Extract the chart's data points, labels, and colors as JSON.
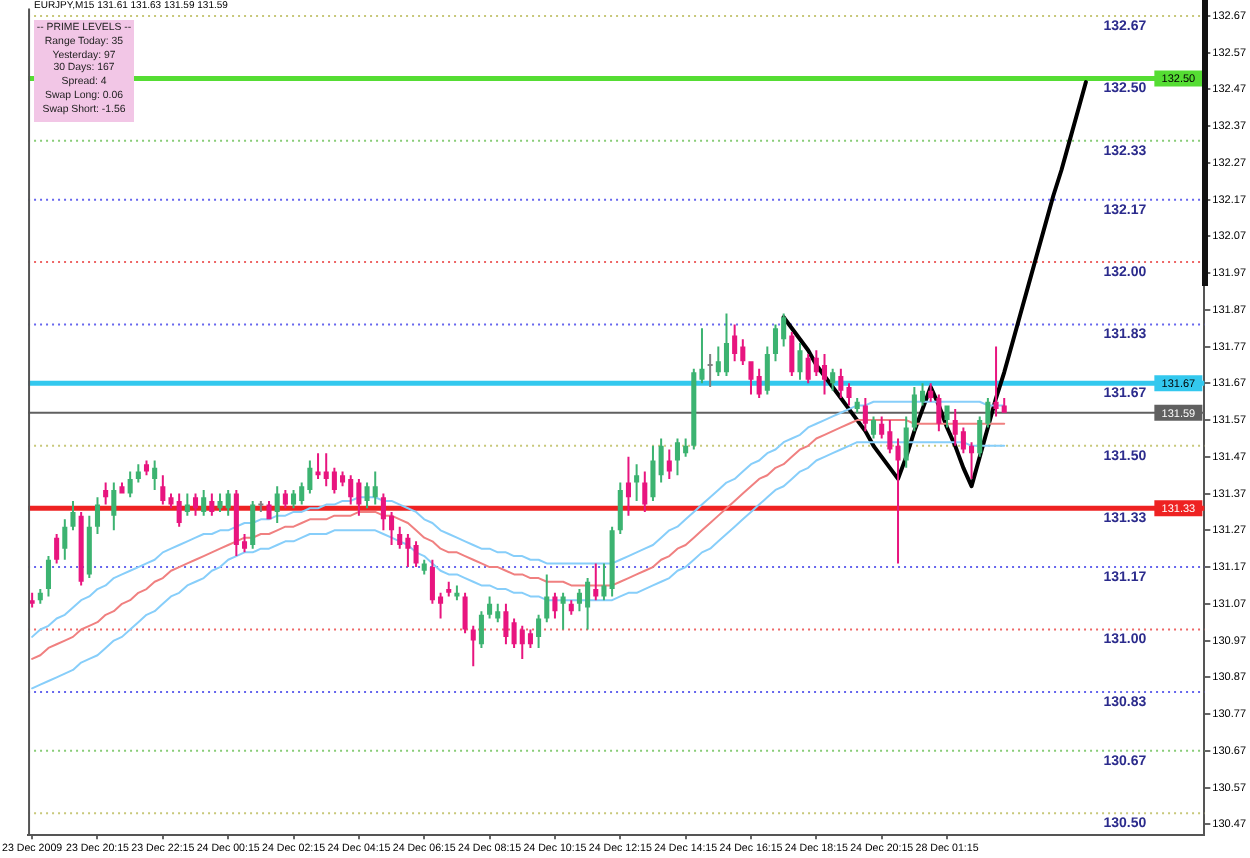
{
  "chart_data": {
    "type": "candlestick",
    "title": "EURJPY,M15 131.61 131.63 131.59 131.59",
    "categories": [
      "23 Dec 2009",
      null,
      null,
      null,
      null,
      null,
      null,
      null,
      "23 Dec 20:15",
      null,
      null,
      null,
      null,
      null,
      null,
      null,
      "23 Dec 22:15",
      null,
      null,
      null,
      null,
      null,
      null,
      null,
      "24 Dec 00:15",
      null,
      null,
      null,
      null,
      null,
      null,
      null,
      "24 Dec 02:15",
      null,
      null,
      null,
      null,
      null,
      null,
      null,
      "24 Dec 04:15",
      null,
      null,
      null,
      null,
      null,
      null,
      null,
      "24 Dec 06:15",
      null,
      null,
      null,
      null,
      null,
      null,
      null,
      "24 Dec 08:15",
      null,
      null,
      null,
      null,
      null,
      null,
      null,
      "24 Dec 10:15",
      null,
      null,
      null,
      null,
      null,
      null,
      null,
      "24 Dec 12:15",
      null,
      null,
      null,
      null,
      null,
      null,
      null,
      "24 Dec 14:15",
      null,
      null,
      null,
      null,
      null,
      null,
      null,
      "24 Dec 16:15",
      null,
      null,
      null,
      null,
      null,
      null,
      null,
      "24 Dec 18:15",
      null,
      null,
      null,
      null,
      null,
      null,
      null,
      "24 Dec 20:15",
      null,
      null,
      null,
      null,
      null,
      null,
      null,
      "28 Dec 01:15",
      null,
      null,
      null,
      null,
      null,
      null,
      null,
      null,
      null,
      null,
      null,
      null,
      null,
      null,
      null,
      null,
      null,
      null,
      null,
      null,
      null,
      null,
      null,
      null,
      null,
      null,
      null,
      null,
      null,
      null,
      null
    ],
    "ylim": [
      130.44,
      132.69
    ],
    "yticks": [
      130.47,
      130.57,
      130.67,
      130.77,
      130.87,
      130.97,
      131.07,
      131.17,
      131.27,
      131.37,
      131.47,
      131.57,
      131.67,
      131.77,
      131.87,
      131.97,
      132.07,
      132.17,
      132.27,
      132.37,
      132.47,
      132.57,
      132.67
    ],
    "ohlc": [
      [
        131.08,
        131.1,
        131.06,
        131.07
      ],
      [
        131.08,
        131.11,
        131.07,
        131.1
      ],
      [
        131.11,
        131.2,
        131.09,
        131.19
      ],
      [
        131.25,
        131.26,
        131.18,
        131.19
      ],
      [
        131.22,
        131.3,
        131.19,
        131.28
      ],
      [
        131.28,
        131.35,
        131.27,
        131.32
      ],
      [
        131.31,
        131.32,
        131.12,
        131.13
      ],
      [
        131.15,
        131.31,
        131.14,
        131.28
      ],
      [
        131.28,
        131.36,
        131.26,
        131.34
      ],
      [
        131.38,
        131.4,
        131.34,
        131.36
      ],
      [
        131.31,
        131.4,
        131.27,
        131.38
      ],
      [
        131.39,
        131.4,
        131.37,
        131.37
      ],
      [
        131.37,
        131.43,
        131.36,
        131.41
      ],
      [
        131.41,
        131.45,
        131.4,
        131.43
      ],
      [
        131.45,
        131.46,
        131.42,
        131.43
      ],
      [
        131.41,
        131.46,
        131.38,
        131.44
      ],
      [
        131.39,
        131.42,
        131.34,
        131.35
      ],
      [
        131.36,
        131.37,
        131.33,
        131.34
      ],
      [
        131.35,
        131.37,
        131.28,
        131.29
      ],
      [
        131.32,
        131.37,
        131.31,
        131.34
      ],
      [
        131.36,
        131.37,
        131.31,
        131.33
      ],
      [
        131.32,
        131.38,
        131.31,
        131.36
      ],
      [
        131.35,
        131.37,
        131.31,
        131.32
      ],
      [
        131.33,
        131.37,
        131.32,
        131.35
      ],
      [
        131.33,
        131.38,
        131.31,
        131.37
      ],
      [
        131.37,
        131.38,
        131.2,
        131.23
      ],
      [
        131.24,
        131.26,
        131.21,
        131.22
      ],
      [
        131.23,
        131.35,
        131.22,
        131.34
      ],
      [
        131.34,
        131.35,
        131.32,
        131.34
      ],
      [
        131.34,
        131.35,
        131.3,
        131.3
      ],
      [
        131.32,
        131.39,
        131.29,
        131.37
      ],
      [
        131.37,
        131.38,
        131.33,
        131.34
      ],
      [
        131.34,
        131.38,
        131.33,
        131.37
      ],
      [
        131.35,
        131.4,
        131.34,
        131.39
      ],
      [
        131.38,
        131.46,
        131.37,
        131.44
      ],
      [
        131.43,
        131.48,
        131.41,
        131.42
      ],
      [
        131.43,
        131.48,
        131.39,
        131.41
      ],
      [
        131.43,
        131.44,
        131.37,
        131.38
      ],
      [
        131.42,
        131.43,
        131.39,
        131.4
      ],
      [
        131.41,
        131.42,
        131.34,
        131.36
      ],
      [
        131.4,
        131.41,
        131.31,
        131.34
      ],
      [
        131.35,
        131.4,
        131.33,
        131.39
      ],
      [
        131.36,
        131.43,
        131.34,
        131.39
      ],
      [
        131.36,
        131.37,
        131.27,
        131.3
      ],
      [
        131.31,
        131.32,
        131.23,
        131.27
      ],
      [
        131.26,
        131.28,
        131.22,
        131.23
      ],
      [
        131.25,
        131.26,
        131.17,
        131.22
      ],
      [
        131.23,
        131.24,
        131.17,
        131.18
      ],
      [
        131.16,
        131.19,
        131.15,
        131.18
      ],
      [
        131.17,
        131.19,
        131.07,
        131.08
      ],
      [
        131.09,
        131.1,
        131.03,
        131.07
      ],
      [
        131.11,
        131.13,
        131.09,
        131.1
      ],
      [
        131.09,
        131.12,
        131.08,
        131.1
      ],
      [
        131.09,
        131.1,
        130.99,
        131.0
      ],
      [
        131.0,
        131.01,
        130.9,
        130.97
      ],
      [
        130.96,
        131.05,
        130.95,
        131.04
      ],
      [
        131.04,
        131.09,
        131.03,
        131.07
      ],
      [
        131.03,
        131.07,
        131.02,
        131.05
      ],
      [
        131.05,
        131.07,
        130.96,
        130.98
      ],
      [
        131.02,
        131.03,
        130.95,
        130.96
      ],
      [
        131.0,
        131.01,
        130.92,
        130.96
      ],
      [
        130.99,
        131.0,
        130.95,
        130.96
      ],
      [
        130.98,
        131.04,
        130.95,
        131.03
      ],
      [
        131.03,
        131.15,
        131.02,
        131.09
      ],
      [
        131.09,
        131.1,
        131.03,
        131.05
      ],
      [
        131.07,
        131.1,
        131.0,
        131.09
      ],
      [
        131.07,
        131.08,
        131.04,
        131.05
      ],
      [
        131.07,
        131.11,
        131.05,
        131.1
      ],
      [
        131.06,
        131.14,
        131.0,
        131.13
      ],
      [
        131.11,
        131.18,
        131.08,
        131.09
      ],
      [
        131.09,
        131.18,
        131.08,
        131.12
      ],
      [
        131.11,
        131.28,
        131.09,
        131.27
      ],
      [
        131.27,
        131.4,
        131.26,
        131.38
      ],
      [
        131.4,
        131.47,
        131.31,
        131.36
      ],
      [
        131.4,
        131.45,
        131.35,
        131.42
      ],
      [
        131.4,
        131.43,
        131.32,
        131.34
      ],
      [
        131.36,
        131.5,
        131.35,
        131.46
      ],
      [
        131.42,
        131.52,
        131.4,
        131.5
      ],
      [
        131.46,
        131.49,
        131.41,
        131.43
      ],
      [
        131.46,
        131.52,
        131.42,
        131.51
      ],
      [
        131.48,
        131.52,
        131.47,
        131.5
      ],
      [
        131.5,
        131.71,
        131.49,
        131.7
      ],
      [
        131.68,
        131.82,
        131.67,
        131.71
      ],
      [
        131.72,
        131.75,
        131.66,
        131.72
      ],
      [
        131.7,
        131.77,
        131.69,
        131.73
      ],
      [
        131.7,
        131.86,
        131.69,
        131.78
      ],
      [
        131.8,
        131.83,
        131.73,
        131.75
      ],
      [
        131.77,
        131.79,
        131.72,
        131.73
      ],
      [
        131.73,
        131.73,
        131.64,
        131.68
      ],
      [
        131.69,
        131.71,
        131.63,
        131.64
      ],
      [
        131.65,
        131.77,
        131.64,
        131.75
      ],
      [
        131.75,
        131.83,
        131.73,
        131.82
      ],
      [
        131.79,
        131.86,
        131.77,
        131.85
      ],
      [
        131.8,
        131.81,
        131.69,
        131.7
      ],
      [
        131.7,
        131.78,
        131.68,
        131.76
      ],
      [
        131.74,
        131.75,
        131.67,
        131.68
      ],
      [
        131.74,
        131.76,
        131.69,
        131.7
      ],
      [
        131.72,
        131.75,
        131.64,
        131.68
      ],
      [
        131.67,
        131.71,
        131.65,
        131.7
      ],
      [
        131.69,
        131.71,
        131.63,
        131.65
      ],
      [
        131.66,
        131.67,
        131.61,
        131.63
      ],
      [
        131.6,
        131.63,
        131.59,
        131.62
      ],
      [
        131.61,
        131.63,
        131.54,
        131.56
      ],
      [
        131.53,
        131.58,
        131.52,
        131.57
      ],
      [
        131.56,
        131.58,
        131.52,
        131.53
      ],
      [
        131.54,
        131.57,
        131.48,
        131.49
      ],
      [
        131.5,
        131.52,
        131.18,
        131.46
      ],
      [
        131.46,
        131.58,
        131.44,
        131.55
      ],
      [
        131.55,
        131.66,
        131.54,
        131.64
      ],
      [
        131.62,
        131.67,
        131.61,
        131.65
      ],
      [
        131.65,
        131.67,
        131.62,
        131.63
      ],
      [
        131.63,
        131.64,
        131.54,
        131.56
      ],
      [
        131.57,
        131.61,
        131.55,
        131.61
      ],
      [
        131.57,
        131.6,
        131.5,
        131.53
      ],
      [
        131.54,
        131.55,
        131.48,
        131.49
      ],
      [
        131.5,
        131.51,
        131.41,
        131.48
      ],
      [
        131.48,
        131.58,
        131.47,
        131.57
      ],
      [
        131.56,
        131.63,
        131.55,
        131.62
      ],
      [
        131.62,
        131.77,
        131.58,
        131.6
      ],
      [
        131.61,
        131.63,
        131.59,
        131.59
      ],
      null,
      null,
      null,
      null,
      null,
      null,
      null,
      null,
      null,
      null,
      null,
      null,
      null,
      null,
      null,
      null,
      null,
      null,
      null,
      null,
      null,
      null,
      null,
      null
    ],
    "colors": [
      "#e8157f",
      "#3cb371",
      "#3cb371",
      "#e8157f",
      "#3cb371",
      "#3cb371",
      "#e8157f",
      "#3cb371",
      "#3cb371",
      "#e8157f",
      "#3cb371",
      "#e8157f",
      "#3cb371",
      "#3cb371",
      "#e8157f",
      "#3cb371",
      "#e8157f",
      "#e8157f",
      "#e8157f",
      "#3cb371",
      "#e8157f",
      "#3cb371",
      "#e8157f",
      "#3cb371",
      "#3cb371",
      "#e8157f",
      "#e8157f",
      "#3cb371",
      "#808080",
      "#e8157f",
      "#3cb371",
      "#e8157f",
      "#3cb371",
      "#3cb371",
      "#3cb371",
      "#e8157f",
      "#e8157f",
      "#e8157f",
      "#e8157f",
      "#e8157f",
      "#e8157f",
      "#3cb371",
      "#3cb371",
      "#e8157f",
      "#e8157f",
      "#e8157f",
      "#e8157f",
      "#e8157f",
      "#3cb371",
      "#e8157f",
      "#e8157f",
      "#e8157f",
      "#3cb371",
      "#e8157f",
      "#e8157f",
      "#3cb371",
      "#3cb371",
      "#3cb371",
      "#e8157f",
      "#e8157f",
      "#e8157f",
      "#e8157f",
      "#3cb371",
      "#3cb371",
      "#e8157f",
      "#3cb371",
      "#e8157f",
      "#3cb371",
      "#3cb371",
      "#e8157f",
      "#3cb371",
      "#3cb371",
      "#3cb371",
      "#e8157f",
      "#3cb371",
      "#e8157f",
      "#3cb371",
      "#3cb371",
      "#e8157f",
      "#3cb371",
      "#3cb371",
      "#3cb371",
      "#3cb371",
      "#808080",
      "#3cb371",
      "#3cb371",
      "#e8157f",
      "#e8157f",
      "#e8157f",
      "#e8157f",
      "#3cb371",
      "#3cb371",
      "#3cb371",
      "#e8157f",
      "#3cb371",
      "#e8157f",
      "#e8157f",
      "#e8157f",
      "#3cb371",
      "#e8157f",
      "#e8157f",
      "#3cb371",
      "#e8157f",
      "#3cb371",
      "#e8157f",
      "#e8157f",
      "#e8157f",
      "#3cb371",
      "#3cb371",
      "#3cb371",
      "#e8157f",
      "#e8157f",
      "#3cb371",
      "#e8157f",
      "#e8157f",
      "#e8157f",
      "#3cb371",
      "#3cb371",
      "#e8157f",
      "#e8157f",
      null,
      null,
      null,
      null,
      null,
      null,
      null,
      null,
      null,
      null,
      null,
      null,
      null,
      null,
      null,
      null,
      null,
      null,
      null,
      null,
      null,
      null,
      null,
      null
    ],
    "series": [
      {
        "type": "line",
        "color": "#87cefa",
        "values": [
          130.98,
          131.0,
          131.01,
          131.03,
          131.04,
          131.06,
          131.08,
          131.09,
          131.11,
          131.12,
          131.14,
          131.15,
          131.16,
          131.17,
          131.18,
          131.19,
          131.21,
          131.22,
          131.23,
          131.24,
          131.25,
          131.26,
          131.26,
          131.27,
          131.27,
          131.28,
          131.29,
          131.29,
          131.3,
          131.3,
          131.31,
          131.31,
          131.32,
          131.32,
          131.33,
          131.33,
          131.34,
          131.34,
          131.35,
          131.35,
          131.36,
          131.36,
          131.36,
          131.35,
          131.35,
          131.34,
          131.33,
          131.32,
          131.3,
          131.29,
          131.27,
          131.26,
          131.25,
          131.24,
          131.23,
          131.22,
          131.22,
          131.21,
          131.21,
          131.2,
          131.2,
          131.19,
          131.19,
          131.18,
          131.18,
          131.18,
          131.18,
          131.18,
          131.18,
          131.18,
          131.18,
          131.18,
          131.19,
          131.2,
          131.21,
          131.22,
          131.23,
          131.25,
          131.27,
          131.28,
          131.3,
          131.32,
          131.34,
          131.36,
          131.38,
          131.4,
          131.41,
          131.43,
          131.45,
          131.46,
          131.48,
          131.49,
          131.51,
          131.52,
          131.53,
          131.55,
          131.56,
          131.57,
          131.58,
          131.59,
          131.6,
          131.61,
          131.61,
          131.62,
          131.62,
          131.62,
          131.62,
          131.62,
          131.62,
          131.62,
          131.62,
          131.62,
          131.62,
          131.62,
          131.62,
          131.62,
          131.62,
          131.61,
          131.61,
          131.61,
          null,
          null,
          null,
          null,
          null,
          null,
          null,
          null,
          null,
          null,
          null,
          null,
          null,
          null,
          null,
          null,
          null,
          null,
          null,
          null,
          null,
          null,
          null,
          null
        ]
      },
      {
        "type": "line",
        "color": "#f08080",
        "values": [
          130.92,
          130.93,
          130.95,
          130.96,
          130.97,
          130.98,
          131.0,
          131.01,
          131.02,
          131.04,
          131.05,
          131.07,
          131.08,
          131.1,
          131.11,
          131.13,
          131.14,
          131.16,
          131.17,
          131.18,
          131.19,
          131.2,
          131.21,
          131.22,
          131.23,
          131.24,
          131.25,
          131.25,
          131.26,
          131.26,
          131.27,
          131.28,
          131.28,
          131.29,
          131.3,
          131.3,
          131.3,
          131.31,
          131.31,
          131.31,
          131.32,
          131.32,
          131.32,
          131.31,
          131.31,
          131.3,
          131.29,
          131.27,
          131.25,
          131.24,
          131.22,
          131.21,
          131.21,
          131.2,
          131.19,
          131.18,
          131.17,
          131.17,
          131.16,
          131.15,
          131.15,
          131.14,
          131.14,
          131.13,
          131.13,
          131.13,
          131.12,
          131.12,
          131.12,
          131.12,
          131.12,
          131.12,
          131.13,
          131.14,
          131.15,
          131.16,
          131.17,
          131.19,
          131.2,
          131.22,
          131.23,
          131.25,
          131.27,
          131.29,
          131.31,
          131.33,
          131.35,
          131.37,
          131.39,
          131.41,
          131.42,
          131.44,
          131.45,
          131.47,
          131.49,
          131.5,
          131.52,
          131.53,
          131.54,
          131.55,
          131.56,
          131.57,
          131.57,
          131.57,
          131.57,
          131.57,
          131.57,
          131.57,
          131.56,
          131.56,
          131.56,
          131.56,
          131.56,
          131.56,
          131.56,
          131.56,
          131.56,
          131.56,
          131.56,
          131.56,
          null,
          null,
          null,
          null,
          null,
          null,
          null,
          null,
          null,
          null,
          null,
          null,
          null,
          null,
          null,
          null,
          null,
          null,
          null,
          null,
          null,
          null,
          null,
          null
        ]
      },
      {
        "type": "line",
        "color": "#87cefa",
        "values": [
          130.84,
          130.85,
          130.86,
          130.87,
          130.88,
          130.89,
          130.91,
          130.92,
          130.93,
          130.95,
          130.97,
          130.98,
          131.0,
          131.02,
          131.04,
          131.05,
          131.07,
          131.09,
          131.1,
          131.12,
          131.13,
          131.14,
          131.16,
          131.17,
          131.19,
          131.2,
          131.21,
          131.21,
          131.22,
          131.22,
          131.23,
          131.24,
          131.24,
          131.25,
          131.26,
          131.26,
          131.26,
          131.27,
          131.27,
          131.27,
          131.27,
          131.27,
          131.27,
          131.26,
          131.25,
          131.24,
          131.23,
          131.21,
          131.2,
          131.18,
          131.16,
          131.15,
          131.15,
          131.14,
          131.13,
          131.12,
          131.12,
          131.11,
          131.11,
          131.1,
          131.1,
          131.09,
          131.09,
          131.08,
          131.08,
          131.08,
          131.08,
          131.08,
          131.08,
          131.08,
          131.08,
          131.08,
          131.09,
          131.1,
          131.1,
          131.11,
          131.12,
          131.13,
          131.14,
          131.16,
          131.17,
          131.19,
          131.21,
          131.22,
          131.24,
          131.26,
          131.28,
          131.3,
          131.32,
          131.34,
          131.36,
          131.38,
          131.39,
          131.41,
          131.43,
          131.44,
          131.46,
          131.47,
          131.48,
          131.49,
          131.5,
          131.51,
          131.51,
          131.51,
          131.51,
          131.51,
          131.51,
          131.51,
          131.51,
          131.51,
          131.51,
          131.51,
          131.51,
          131.51,
          131.51,
          131.5,
          131.5,
          131.5,
          131.5,
          131.5,
          null,
          null,
          null,
          null,
          null,
          null,
          null,
          null,
          null,
          null,
          null,
          null,
          null,
          null,
          null,
          null,
          null,
          null,
          null,
          null,
          null,
          null,
          null,
          null
        ]
      },
      {
        "type": "line",
        "color": "#000000",
        "values": [
          null,
          null,
          null,
          null,
          null,
          null,
          null,
          null,
          null,
          null,
          null,
          null,
          null,
          null,
          null,
          null,
          null,
          null,
          null,
          null,
          null,
          null,
          null,
          null,
          null,
          null,
          null,
          null,
          null,
          null,
          null,
          null,
          null,
          null,
          null,
          null,
          null,
          null,
          null,
          null,
          null,
          null,
          null,
          null,
          null,
          null,
          null,
          null,
          null,
          null,
          null,
          null,
          null,
          null,
          null,
          null,
          null,
          null,
          null,
          null,
          null,
          null,
          null,
          null,
          null,
          null,
          null,
          null,
          null,
          null,
          null,
          null,
          null,
          null,
          null,
          null,
          null,
          null,
          null,
          null,
          null,
          null,
          null,
          null,
          null,
          null,
          null,
          null,
          null,
          null,
          null,
          null,
          131.85,
          131.82,
          131.79,
          131.76,
          131.72,
          131.69,
          131.66,
          131.63,
          131.6,
          131.57,
          131.54,
          131.5,
          131.47,
          131.44,
          131.41,
          131.47,
          131.54,
          131.6,
          131.66,
          131.61,
          131.55,
          131.5,
          131.44,
          131.39,
          131.47,
          131.55,
          131.63,
          131.7,
          131.78,
          131.86,
          131.94,
          132.02,
          132.1,
          132.18,
          132.25,
          132.33,
          132.41,
          132.49,
          null,
          null,
          null,
          null,
          null,
          null,
          null,
          null,
          null,
          null,
          null,
          null,
          null,
          null
        ]
      }
    ],
    "ref_lines": [
      {
        "axis": "y",
        "value": 132.67,
        "label": "132.67",
        "color": "#c8c87a",
        "line_style": "dotted"
      },
      {
        "axis": "y",
        "value": 132.5,
        "label": "132.50",
        "color": "#55dd33",
        "line_style": "solid"
      },
      {
        "axis": "y",
        "value": 132.33,
        "label": "132.33",
        "color": "#88cc77",
        "line_style": "dotted"
      },
      {
        "axis": "y",
        "value": 132.17,
        "label": "132.17",
        "color": "#6666ee",
        "line_style": "dotted"
      },
      {
        "axis": "y",
        "value": 132.0,
        "label": "132.00",
        "color": "#ee6666",
        "line_style": "dotted"
      },
      {
        "axis": "y",
        "value": 131.83,
        "label": "131.83",
        "color": "#6666ee",
        "line_style": "dotted"
      },
      {
        "axis": "y",
        "value": 131.67,
        "label": "131.67",
        "color": "#33c8ee",
        "line_style": "solid"
      },
      {
        "axis": "y",
        "value": 131.59,
        "color": "#606060",
        "line_style": "solid"
      },
      {
        "axis": "y",
        "value": 131.5,
        "label": "131.50",
        "color": "#c8c87a",
        "line_style": "dotted"
      },
      {
        "axis": "y",
        "value": 131.33,
        "label": "131.33",
        "color": "#ee2222",
        "line_style": "solid"
      },
      {
        "axis": "y",
        "value": 131.17,
        "label": "131.17",
        "color": "#6666ee",
        "line_style": "dotted"
      },
      {
        "axis": "y",
        "value": 131.0,
        "label": "131.00",
        "color": "#ee6666",
        "line_style": "dotted"
      },
      {
        "axis": "y",
        "value": 130.83,
        "label": "130.83",
        "color": "#6666ee",
        "line_style": "dotted"
      },
      {
        "axis": "y",
        "value": 130.67,
        "label": "130.67",
        "color": "#88cc77",
        "line_style": "dotted"
      },
      {
        "axis": "y",
        "value": 130.5,
        "label": "130.50",
        "color": "#c8c87a",
        "line_style": "dotted"
      }
    ],
    "annotations": [
      "-- PRIME LEVELS --",
      "Range Today: 35",
      "Yesterday: 97",
      "30 Days: 167",
      "Spread: 4",
      "Swap Long: 0.06",
      "Swap Short: -1.56",
      {
        "text": "132.50",
        "y": 132.5
      },
      {
        "text": "131.67",
        "y": 131.67
      },
      {
        "text": "131.59",
        "y": 131.59
      },
      {
        "text": "131.33",
        "y": 131.33
      }
    ]
  }
}
